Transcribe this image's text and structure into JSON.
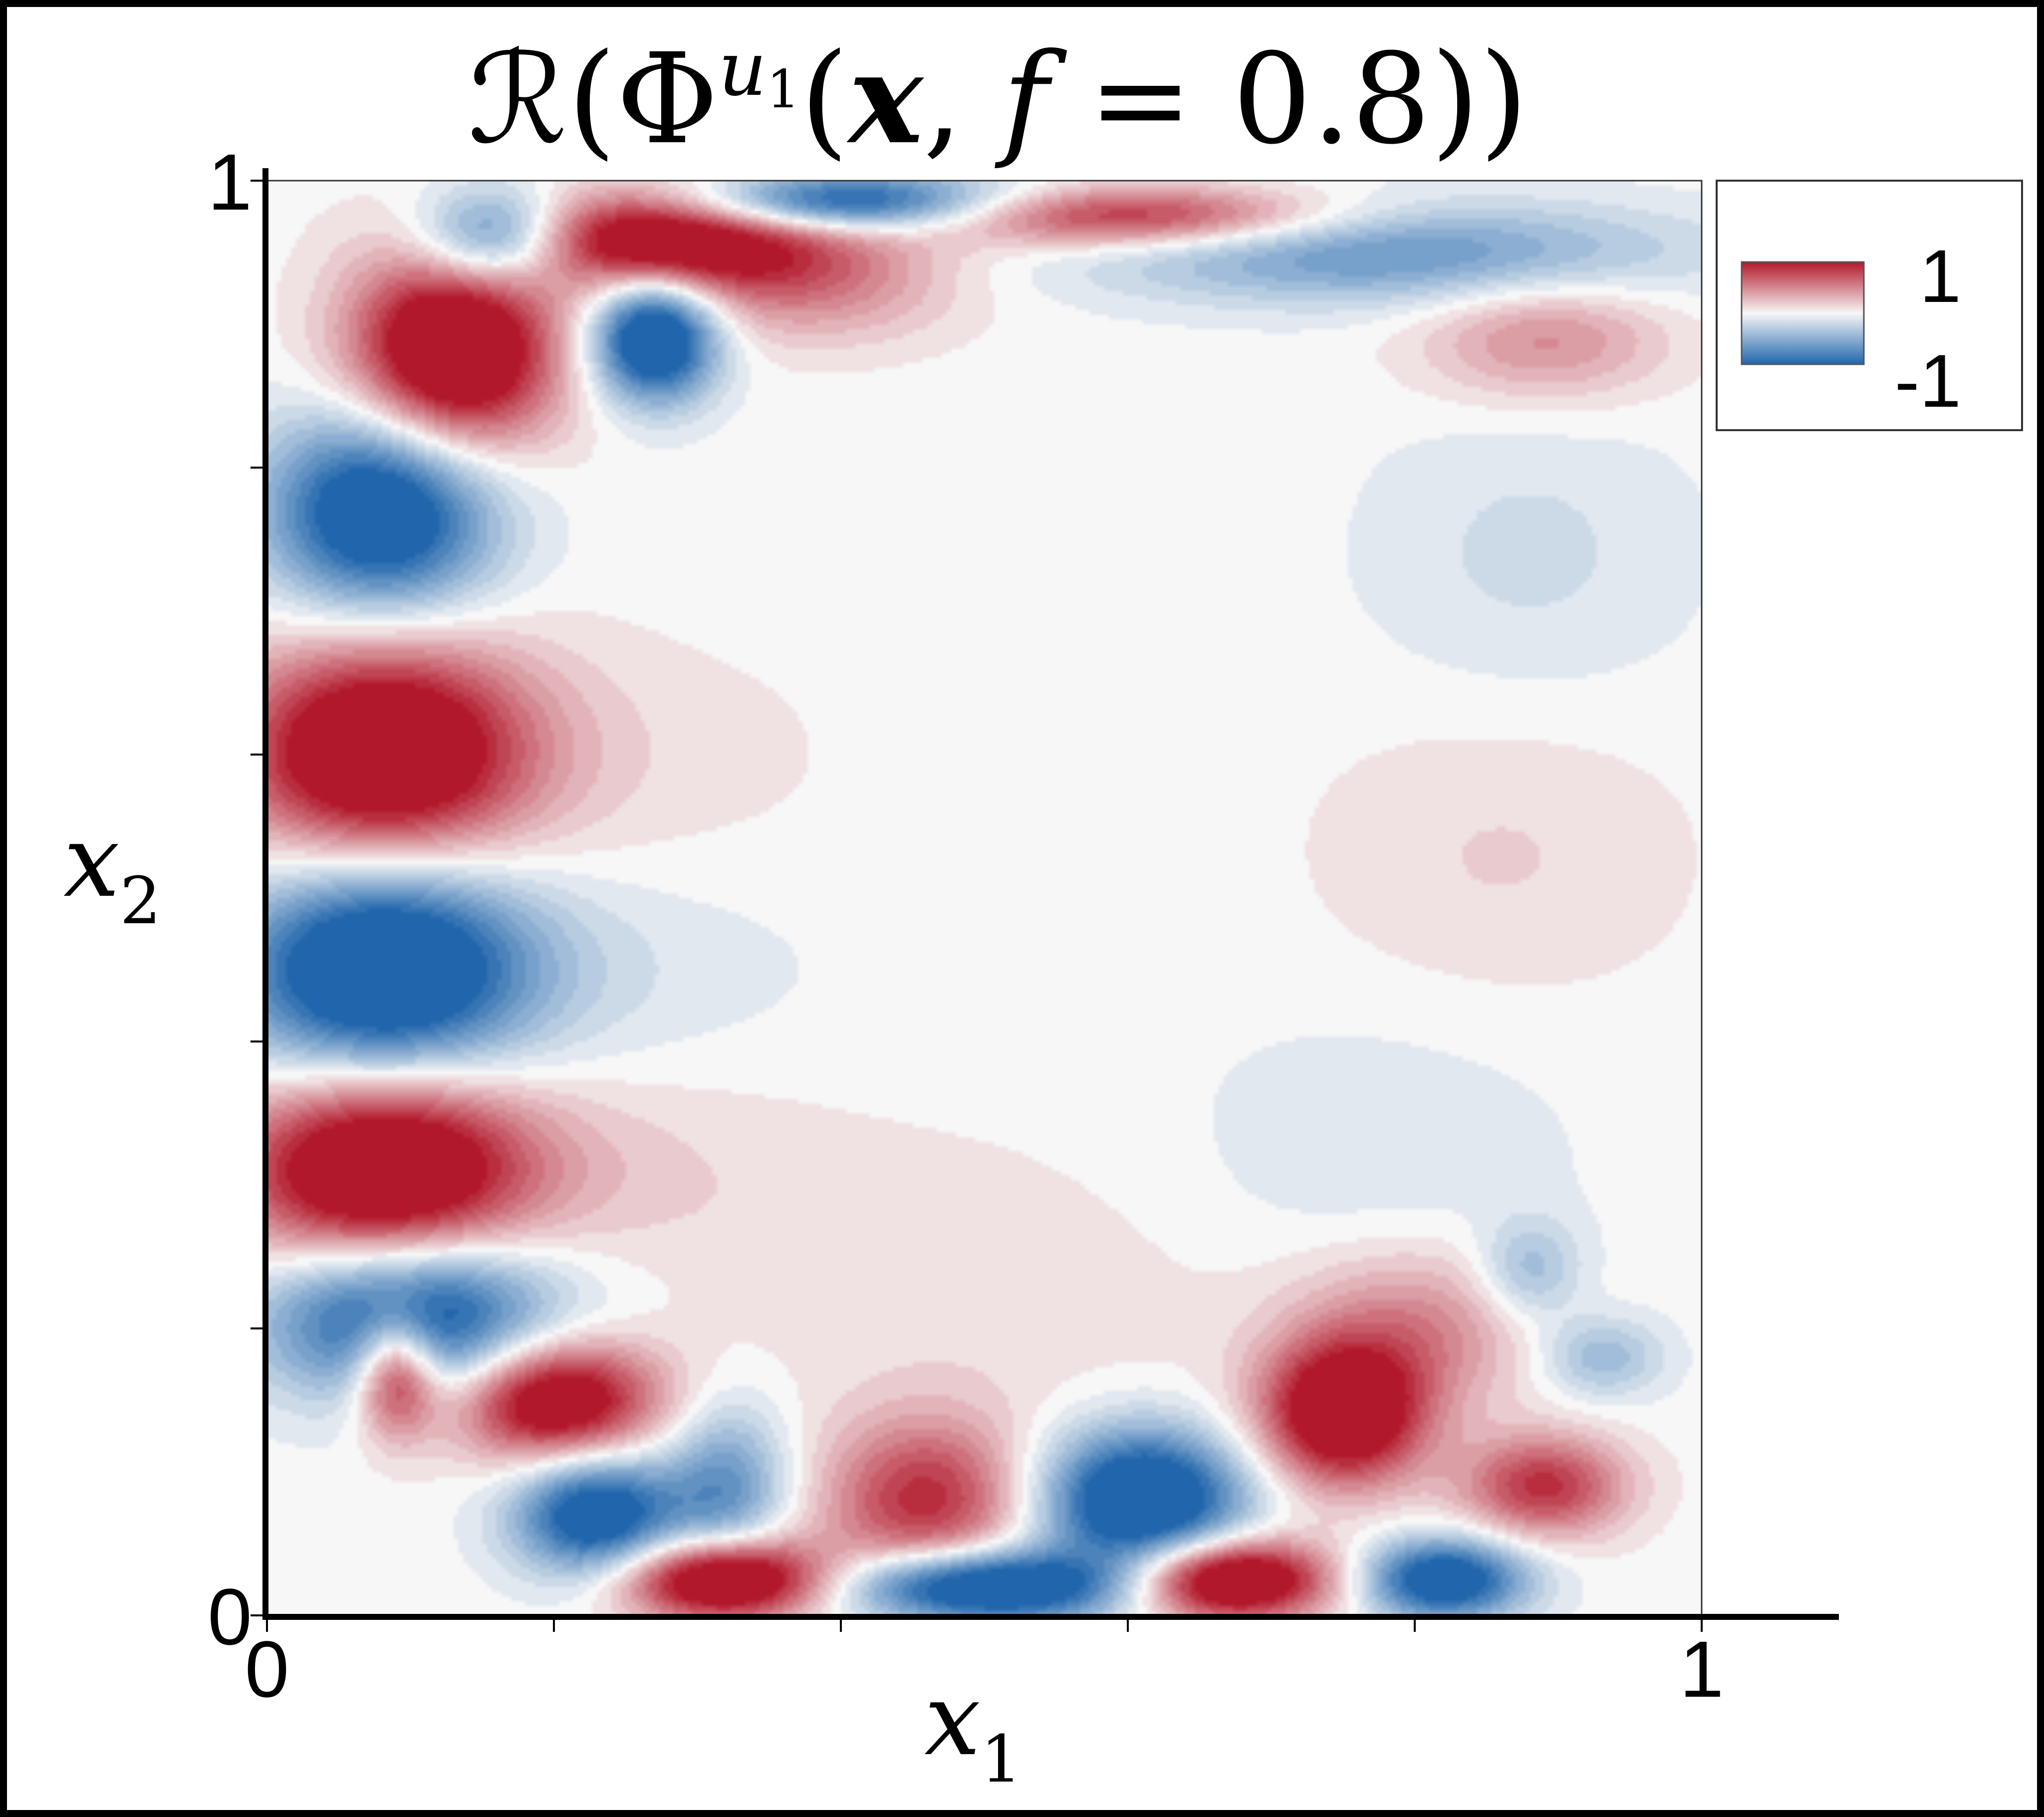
{
  "chart_data": {
    "type": "heatmap",
    "title": "R(Φ^{u1}(x, f = 0.8))",
    "title_parts": {
      "operator": "ℛ",
      "open": "(",
      "field": "Φ",
      "sup": "u",
      "sup_sub": "1",
      "args_open": "(",
      "x": "x",
      "comma": ", ",
      "f": "f",
      "eq": " = 0.8",
      "close": "))"
    },
    "xlabel": {
      "base": "x",
      "sub": "1"
    },
    "ylabel": {
      "base": "x",
      "sub": "2"
    },
    "xlim": [
      0,
      1
    ],
    "ylim": [
      0,
      1
    ],
    "x_ticks": [
      0,
      0.2,
      0.4,
      0.6,
      0.8,
      1
    ],
    "y_ticks": [
      0,
      0.2,
      0.4,
      0.6,
      0.8,
      1
    ],
    "x_tick_labels": [
      {
        "value": 0,
        "label": "0"
      },
      {
        "value": 1,
        "label": "1"
      }
    ],
    "y_tick_labels": [
      {
        "value": 0,
        "label": "0"
      },
      {
        "value": 1,
        "label": "1"
      }
    ],
    "colorbar": {
      "max_label": "1",
      "min_label": "-1",
      "range": [
        -1,
        1
      ],
      "colormap": "RdBu_r",
      "placement": "top-right"
    },
    "colors": {
      "pos": "#b2182b",
      "mid": "#f7f7f7",
      "neg": "#2166ac"
    },
    "blobs": [
      {
        "x": 0.08,
        "y": 0.6,
        "value": 1.5,
        "sx": 0.07,
        "sy": 0.055
      },
      {
        "x": 0.08,
        "y": 0.45,
        "value": -1.5,
        "sx": 0.07,
        "sy": 0.055
      },
      {
        "x": 0.08,
        "y": 0.31,
        "value": 1.5,
        "sx": 0.07,
        "sy": 0.05
      },
      {
        "x": 0.08,
        "y": 0.77,
        "value": -1.4,
        "sx": 0.055,
        "sy": 0.05
      },
      {
        "x": 0.1,
        "y": 0.21,
        "value": -1.4,
        "sx": 0.07,
        "sy": 0.04
      },
      {
        "x": 0.13,
        "y": 0.88,
        "value": 1.6,
        "sx": 0.05,
        "sy": 0.05
      },
      {
        "x": 0.16,
        "y": 0.96,
        "value": -1.3,
        "sx": 0.04,
        "sy": 0.025
      },
      {
        "x": 0.27,
        "y": 0.89,
        "value": -1.5,
        "sx": 0.03,
        "sy": 0.03
      },
      {
        "x": 0.27,
        "y": 0.96,
        "value": 1.4,
        "sx": 0.08,
        "sy": 0.025
      },
      {
        "x": 0.4,
        "y": 0.985,
        "value": -1.3,
        "sx": 0.08,
        "sy": 0.015
      },
      {
        "x": 0.38,
        "y": 0.93,
        "value": 0.5,
        "sx": 0.07,
        "sy": 0.03
      },
      {
        "x": 0.6,
        "y": 0.975,
        "value": 1.0,
        "sx": 0.1,
        "sy": 0.015
      },
      {
        "x": 0.78,
        "y": 0.95,
        "value": -0.7,
        "sx": 0.14,
        "sy": 0.025
      },
      {
        "x": 0.89,
        "y": 0.89,
        "value": 0.5,
        "sx": 0.06,
        "sy": 0.03
      },
      {
        "x": 0.88,
        "y": 0.74,
        "value": -0.18,
        "sx": 0.08,
        "sy": 0.07
      },
      {
        "x": 0.86,
        "y": 0.53,
        "value": 0.16,
        "sx": 0.09,
        "sy": 0.07
      },
      {
        "x": 0.77,
        "y": 0.32,
        "value": -0.14,
        "sx": 0.1,
        "sy": 0.07
      },
      {
        "x": 0.22,
        "y": 0.6,
        "value": 0.12,
        "sx": 0.12,
        "sy": 0.06
      },
      {
        "x": 0.2,
        "y": 0.45,
        "value": -0.15,
        "sx": 0.12,
        "sy": 0.05
      },
      {
        "x": 0.2,
        "y": 0.31,
        "value": 0.18,
        "sx": 0.12,
        "sy": 0.05
      },
      {
        "x": 0.5,
        "y": 0.22,
        "value": 0.12,
        "sx": 0.15,
        "sy": 0.08
      },
      {
        "x": 0.2,
        "y": 0.15,
        "value": 1.4,
        "sx": 0.05,
        "sy": 0.03
      },
      {
        "x": 0.09,
        "y": 0.17,
        "value": 1.2,
        "sx": 0.02,
        "sy": 0.03
      },
      {
        "x": 0.23,
        "y": 0.07,
        "value": -1.3,
        "sx": 0.04,
        "sy": 0.03
      },
      {
        "x": 0.32,
        "y": 0.09,
        "value": -0.7,
        "sx": 0.03,
        "sy": 0.04
      },
      {
        "x": 0.32,
        "y": 0.025,
        "value": 1.6,
        "sx": 0.05,
        "sy": 0.02
      },
      {
        "x": 0.46,
        "y": 0.08,
        "value": 0.9,
        "sx": 0.05,
        "sy": 0.04
      },
      {
        "x": 0.5,
        "y": 0.02,
        "value": -1.5,
        "sx": 0.07,
        "sy": 0.018
      },
      {
        "x": 0.61,
        "y": 0.08,
        "value": -1.5,
        "sx": 0.05,
        "sy": 0.035
      },
      {
        "x": 0.67,
        "y": 0.025,
        "value": 1.6,
        "sx": 0.05,
        "sy": 0.02
      },
      {
        "x": 0.75,
        "y": 0.14,
        "value": 1.4,
        "sx": 0.04,
        "sy": 0.035
      },
      {
        "x": 0.82,
        "y": 0.025,
        "value": -1.3,
        "sx": 0.04,
        "sy": 0.02
      },
      {
        "x": 0.8,
        "y": 0.2,
        "value": 0.5,
        "sx": 0.06,
        "sy": 0.04
      },
      {
        "x": 0.89,
        "y": 0.09,
        "value": 0.9,
        "sx": 0.04,
        "sy": 0.025
      },
      {
        "x": 0.88,
        "y": 0.24,
        "value": -0.45,
        "sx": 0.025,
        "sy": 0.025
      },
      {
        "x": 0.93,
        "y": 0.18,
        "value": -0.45,
        "sx": 0.03,
        "sy": 0.02
      }
    ]
  }
}
